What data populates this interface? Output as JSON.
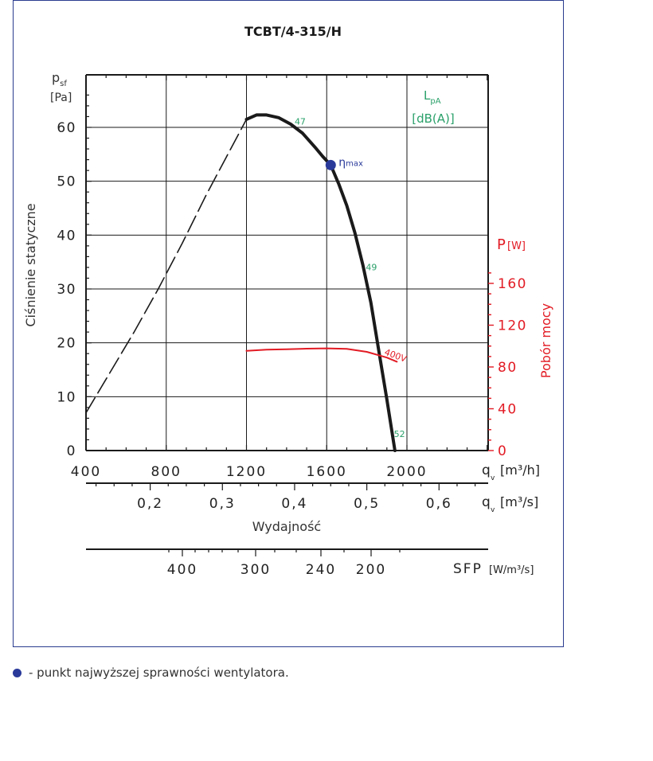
{
  "chart_data": {
    "type": "line",
    "title": "TCBT/4-315/H",
    "x_axis": {
      "label": "Wydajność",
      "unit": "q_v [m³/h]",
      "range": [
        400,
        2400
      ],
      "ticks": [
        400,
        800,
        1200,
        1600,
        2000
      ]
    },
    "x_axis_secondary": {
      "unit": "q_v [m³/s]",
      "ticks": [
        0.2,
        0.3,
        0.4,
        0.5,
        0.6
      ],
      "tick_labels": [
        "0,2",
        "0,3",
        "0,4",
        "0,5",
        "0,6"
      ]
    },
    "sfp_axis": {
      "unit": "SFP [W/m³/s]",
      "ticks": [
        400,
        300,
        240,
        200
      ]
    },
    "y_axis": {
      "label": "Ciśnienie statyczne",
      "unit": "p_sf [Pa]",
      "range": [
        0,
        67
      ],
      "ticks": [
        0,
        10,
        20,
        30,
        40,
        50,
        60
      ]
    },
    "y_axis_right": {
      "label": "Pobór mocy",
      "unit": "P [W]",
      "range": [
        0,
        160
      ],
      "ticks": [
        0,
        40,
        80,
        120,
        160
      ]
    },
    "grid": true,
    "series": [
      {
        "name": "pressure",
        "style": "solid",
        "color": "#1a1a1a",
        "x": [
          1200,
          1250,
          1300,
          1360,
          1420,
          1480,
          1540,
          1580,
          1620,
          1660,
          1700,
          1740,
          1780,
          1820,
          1860,
          1900,
          1940
        ],
        "y": [
          61.5,
          62.3,
          62.3,
          61.8,
          60.6,
          58.9,
          56.4,
          54.6,
          53.0,
          49.5,
          45.5,
          40.5,
          34.5,
          27.5,
          18.5,
          9.5,
          0
        ]
      },
      {
        "name": "pressure_unstable",
        "style": "dashed",
        "color": "#1a1a1a",
        "x": [
          400,
          520,
          640,
          760,
          880,
          1000,
          1100,
          1200
        ],
        "y": [
          7.0,
          14.5,
          22.0,
          30.0,
          38.5,
          47.5,
          54.5,
          61.5
        ]
      },
      {
        "name": "400V",
        "axis": "right",
        "style": "solid",
        "color": "#e21b24",
        "x": [
          1200,
          1300,
          1400,
          1500,
          1600,
          1700,
          1800,
          1900,
          1950
        ],
        "y": [
          95.5,
          96.5,
          97.0,
          97.5,
          97.8,
          97.3,
          94.5,
          89.0,
          85.0
        ]
      }
    ],
    "annotations": {
      "lpa_label": "L",
      "lpa_sub": "pA",
      "lpa_unit": "[dB(A)]",
      "noise_points": [
        {
          "text": "47",
          "x": 1440,
          "y": 60.5
        },
        {
          "text": "49",
          "x": 1795,
          "y": 33.5
        },
        {
          "text": "52",
          "x": 1935,
          "y": 2.5
        }
      ],
      "eta_max_label": "η",
      "eta_max_sub": "max",
      "eta_max_point": {
        "x": 1620,
        "y": 53.0
      }
    }
  },
  "footnote": {
    "text": "- punkt najwyższej sprawności wentylatora."
  },
  "colors": {
    "frame": "#2a3b8f",
    "grid": "#1a1a1a",
    "power": "#e21b24",
    "noise": "#2aa06a",
    "marker": "#2a3a9a"
  }
}
